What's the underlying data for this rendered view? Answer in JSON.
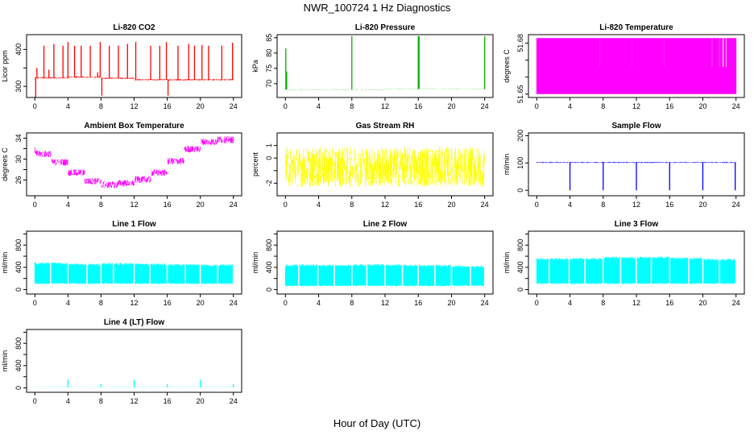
{
  "figure": {
    "title": "NWR_100724  1 Hz Diagnostics",
    "xlabel": "Hour of Day (UTC)"
  },
  "chart_data": [
    {
      "type": "line",
      "title": "Li-820 CO2",
      "ylabel": "Licor ppm",
      "color": "#ff0000",
      "xlim": [
        -1,
        25
      ],
      "ylim": [
        270,
        440
      ],
      "xticks": [
        0,
        4,
        8,
        12,
        16,
        20,
        24
      ],
      "yticks": [
        300,
        350,
        400
      ],
      "ytick_labels": [
        "300",
        "",
        "400"
      ],
      "baseline": [
        [
          0,
          320
        ],
        [
          4,
          323
        ],
        [
          8,
          325
        ],
        [
          12,
          322
        ],
        [
          16,
          318
        ],
        [
          20,
          318
        ],
        [
          24,
          318
        ]
      ],
      "noise": 4,
      "spikes": [
        [
          0.1,
          262
        ],
        [
          0.25,
          350
        ],
        [
          1.1,
          410
        ],
        [
          1.7,
          345
        ],
        [
          2.3,
          415
        ],
        [
          3.4,
          410
        ],
        [
          4.0,
          420
        ],
        [
          4.8,
          410
        ],
        [
          5.6,
          410
        ],
        [
          6.7,
          410
        ],
        [
          7.6,
          338
        ],
        [
          7.9,
          420
        ],
        [
          8.1,
          275
        ],
        [
          9.0,
          410
        ],
        [
          10.1,
          410
        ],
        [
          11.2,
          415
        ],
        [
          12.2,
          420
        ],
        [
          14.0,
          410
        ],
        [
          15.1,
          410
        ],
        [
          15.9,
          420
        ],
        [
          16.1,
          275
        ],
        [
          17.3,
          410
        ],
        [
          18.6,
          415
        ],
        [
          19.3,
          410
        ],
        [
          20.2,
          412
        ],
        [
          21.0,
          410
        ],
        [
          22.6,
          410
        ],
        [
          23.9,
          418
        ]
      ]
    },
    {
      "type": "line",
      "title": "Li-820 Pressure",
      "ylabel": "kPa",
      "color": "#00b000",
      "xlim": [
        -1,
        25
      ],
      "ylim": [
        65.5,
        86
      ],
      "xticks": [
        0,
        4,
        8,
        12,
        16,
        20,
        24
      ],
      "yticks": [
        70,
        75,
        80,
        85
      ],
      "ytick_labels": [
        "70",
        "75",
        "80",
        "85"
      ],
      "baseline": [
        [
          0,
          68.2
        ],
        [
          4,
          68.1
        ],
        [
          8,
          68.1
        ],
        [
          12,
          68.1
        ],
        [
          16,
          68.2
        ],
        [
          18,
          68.4
        ],
        [
          20,
          68.3
        ],
        [
          24,
          68.2
        ]
      ],
      "noise": 0.1,
      "spikes": [
        [
          0.05,
          81.5
        ],
        [
          0.15,
          74
        ],
        [
          8.0,
          85.5
        ],
        [
          16.0,
          85.5
        ],
        [
          16.1,
          85.5
        ],
        [
          24.0,
          85.5
        ]
      ]
    },
    {
      "type": "line",
      "title": "Li-820 Temperature",
      "ylabel": "degrees C",
      "color": "#ff00ff",
      "xlim": [
        -1,
        25
      ],
      "ylim": [
        51.648,
        51.685
      ],
      "xticks": [
        0,
        4,
        8,
        12,
        16,
        20,
        24
      ],
      "yticks": [
        51.65,
        51.66,
        51.67,
        51.68
      ],
      "ytick_labels": [
        "51.65",
        "",
        "",
        "51.68"
      ],
      "levels": [
        51.65,
        51.666,
        51.683
      ],
      "pattern": "quantized"
    },
    {
      "type": "line",
      "title": "Ambient Box Temperature",
      "ylabel": "degrees C",
      "color": "#ff00ff",
      "xlim": [
        -1,
        25
      ],
      "ylim": [
        23,
        35
      ],
      "xticks": [
        0,
        4,
        8,
        12,
        16,
        20,
        24
      ],
      "yticks": [
        26,
        28,
        30,
        32,
        34
      ],
      "ytick_labels": [
        "26",
        "",
        "30",
        "",
        "34"
      ],
      "baseline": [
        [
          0,
          31.8
        ],
        [
          2,
          31.0
        ],
        [
          4,
          29.4
        ],
        [
          6,
          27.4
        ],
        [
          8,
          25.8
        ],
        [
          10,
          25.1
        ],
        [
          12,
          25.4
        ],
        [
          14,
          26.1
        ],
        [
          16,
          27.4
        ],
        [
          18,
          29.6
        ],
        [
          20,
          31.9
        ],
        [
          22,
          33.3
        ],
        [
          24,
          33.7
        ]
      ],
      "noise": 1.3
    },
    {
      "type": "line",
      "title": "Gas Stream RH",
      "ylabel": "percent",
      "color": "#ffff00",
      "xlim": [
        -1,
        25
      ],
      "ylim": [
        -3,
        2
      ],
      "xticks": [
        0,
        4,
        8,
        12,
        16,
        20,
        24
      ],
      "yticks": [
        -2,
        -1,
        0,
        1
      ],
      "ytick_labels": [
        "-2",
        "",
        "0",
        "1"
      ],
      "baseline": [
        [
          0,
          -0.7
        ],
        [
          24,
          -0.7
        ]
      ],
      "noise": 3.2
    },
    {
      "type": "line",
      "title": "Sample Flow",
      "ylabel": "ml/min",
      "color": "#0000ff",
      "xlim": [
        -1,
        25
      ],
      "ylim": [
        -20,
        210
      ],
      "xticks": [
        0,
        4,
        8,
        12,
        16,
        20,
        24
      ],
      "yticks": [
        0,
        100,
        200
      ],
      "ytick_labels": [
        "0",
        "100",
        "200"
      ],
      "baseline": [
        [
          0,
          102
        ],
        [
          24,
          102
        ]
      ],
      "noise": 4,
      "spikes": [
        [
          4.0,
          0
        ],
        [
          8.0,
          0
        ],
        [
          12.0,
          0
        ],
        [
          16.0,
          0
        ],
        [
          20.0,
          0
        ],
        [
          23.9,
          0
        ]
      ]
    },
    {
      "type": "line",
      "title": "Line 1 Flow",
      "ylabel": "ml/min",
      "color": "#00ffff",
      "xlim": [
        -1,
        25
      ],
      "ylim": [
        -80,
        1050
      ],
      "xticks": [
        0,
        4,
        8,
        12,
        16,
        20,
        24
      ],
      "yticks": [
        0,
        200,
        400,
        600,
        800,
        1000
      ],
      "ytick_labels": [
        "0",
        "",
        "400",
        "",
        "800",
        ""
      ],
      "band": [
        [
          0,
          100,
          500
        ],
        [
          4,
          100,
          490
        ],
        [
          8,
          100,
          470
        ],
        [
          12,
          100,
          480
        ],
        [
          16,
          100,
          470
        ],
        [
          20,
          100,
          460
        ],
        [
          24,
          100,
          455
        ]
      ],
      "gaps": [
        1.9,
        4.0,
        6.3,
        8.0,
        9.5,
        12.0,
        13.9,
        16.0,
        18.2,
        20.0,
        22.1,
        24.0
      ]
    },
    {
      "type": "line",
      "title": "Line 2 Flow",
      "ylabel": "ml/min",
      "color": "#00ffff",
      "xlim": [
        -1,
        25
      ],
      "ylim": [
        -80,
        1050
      ],
      "xticks": [
        0,
        4,
        8,
        12,
        16,
        20,
        24
      ],
      "yticks": [
        0,
        200,
        400,
        600,
        800,
        1000
      ],
      "ytick_labels": [
        "0",
        "",
        "400",
        "",
        "800",
        ""
      ],
      "band": [
        [
          0,
          60,
          460
        ],
        [
          4,
          60,
          455
        ],
        [
          8,
          60,
          450
        ],
        [
          12,
          60,
          460
        ],
        [
          16,
          60,
          455
        ],
        [
          20,
          60,
          445
        ],
        [
          24,
          60,
          430
        ]
      ],
      "gaps": [
        1.6,
        3.9,
        5.9,
        8.0,
        9.8,
        12.0,
        14.1,
        16.0,
        18.0,
        20.0,
        22.3,
        24.0
      ]
    },
    {
      "type": "line",
      "title": "Line 3 Flow",
      "ylabel": "ml/min",
      "color": "#00ffff",
      "xlim": [
        -1,
        25
      ],
      "ylim": [
        -80,
        1050
      ],
      "xticks": [
        0,
        4,
        8,
        12,
        16,
        20,
        24
      ],
      "yticks": [
        0,
        200,
        400,
        600,
        800,
        1000
      ],
      "ytick_labels": [
        "0",
        "",
        "400",
        "",
        "800",
        ""
      ],
      "band": [
        [
          0,
          100,
          560
        ],
        [
          4,
          100,
          565
        ],
        [
          8,
          100,
          570
        ],
        [
          12,
          100,
          590
        ],
        [
          16,
          100,
          595
        ],
        [
          20,
          100,
          580
        ],
        [
          24,
          100,
          555
        ]
      ],
      "gaps": [
        1.5,
        3.9,
        5.8,
        8.0,
        10.1,
        12.0,
        13.8,
        16.0,
        18.3,
        20.0,
        22.0,
        24.0
      ]
    },
    {
      "type": "line",
      "title": "Line 4 (LT) Flow",
      "ylabel": "ml/min",
      "color": "#00ffff",
      "xlim": [
        -1,
        25
      ],
      "ylim": [
        -80,
        1050
      ],
      "xticks": [
        0,
        4,
        8,
        12,
        16,
        20,
        24
      ],
      "yticks": [
        0,
        200,
        400,
        600,
        800,
        1000
      ],
      "ytick_labels": [
        "0",
        "",
        "400",
        "",
        "800",
        ""
      ],
      "baseline": [
        [
          0,
          12
        ],
        [
          24,
          12
        ]
      ],
      "noise": 6,
      "spikes": [
        [
          4.0,
          150
        ],
        [
          8.0,
          70
        ],
        [
          12.0,
          150
        ],
        [
          16.0,
          70
        ],
        [
          20.0,
          150
        ],
        [
          24.0,
          70
        ]
      ]
    }
  ]
}
